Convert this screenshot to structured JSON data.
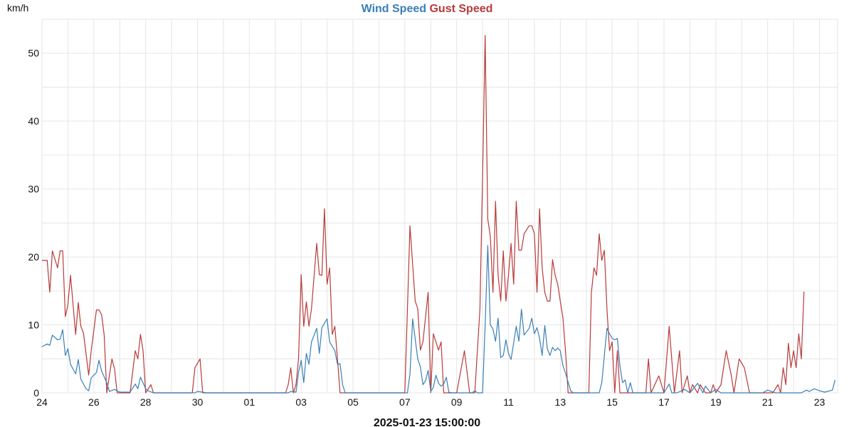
{
  "chart_data": {
    "type": "line",
    "title": "",
    "ylabel": "km/h",
    "xlabel": "2025-01-23 15:00:00",
    "ylim": [
      0,
      55
    ],
    "yticks": [
      0,
      10,
      20,
      30,
      40,
      50
    ],
    "grid": true,
    "legend_position": "top-center",
    "x_tick_labels": [
      "24",
      "26",
      "28",
      "30",
      "01",
      "03",
      "05",
      "07",
      "09",
      "11",
      "13",
      "15",
      "17",
      "19",
      "21",
      "23"
    ],
    "x_tick_positions": [
      0,
      2,
      4,
      6,
      8,
      10,
      12,
      14,
      16,
      18,
      20,
      22,
      24,
      26,
      28,
      30
    ],
    "xlim": [
      0,
      30.7
    ],
    "series": [
      {
        "name": "Wind Speed",
        "color": "#3a7fb8",
        "points": [
          [
            0.0,
            6.8
          ],
          [
            0.2,
            7.2
          ],
          [
            0.3,
            7.0
          ],
          [
            0.4,
            8.5
          ],
          [
            0.6,
            7.8
          ],
          [
            0.7,
            7.9
          ],
          [
            0.8,
            9.3
          ],
          [
            0.9,
            5.5
          ],
          [
            1.0,
            6.5
          ],
          [
            1.1,
            4.2
          ],
          [
            1.3,
            2.8
          ],
          [
            1.4,
            4.9
          ],
          [
            1.5,
            2.0
          ],
          [
            1.7,
            0.6
          ],
          [
            1.8,
            0.3
          ],
          [
            1.9,
            2.2
          ],
          [
            2.1,
            3.0
          ],
          [
            2.2,
            4.8
          ],
          [
            2.3,
            3.2
          ],
          [
            2.5,
            1.5
          ],
          [
            2.6,
            0.2
          ],
          [
            2.8,
            0.5
          ],
          [
            3.0,
            0.1
          ],
          [
            3.4,
            0.1
          ],
          [
            3.6,
            1.3
          ],
          [
            3.7,
            0.6
          ],
          [
            3.8,
            2.3
          ],
          [
            4.0,
            0.6
          ],
          [
            4.1,
            0.3
          ],
          [
            4.3,
            0.0
          ],
          [
            5.9,
            0.0
          ],
          [
            6.0,
            0.2
          ],
          [
            6.2,
            0.1
          ],
          [
            6.3,
            0.0
          ],
          [
            9.5,
            0.0
          ],
          [
            9.6,
            0.2
          ],
          [
            9.8,
            0.1
          ],
          [
            9.9,
            3.0
          ],
          [
            10.0,
            4.8
          ],
          [
            10.1,
            1.5
          ],
          [
            10.2,
            5.8
          ],
          [
            10.3,
            4.2
          ],
          [
            10.4,
            7.5
          ],
          [
            10.6,
            9.5
          ],
          [
            10.7,
            5.8
          ],
          [
            10.8,
            9.6
          ],
          [
            11.0,
            10.9
          ],
          [
            11.1,
            7.5
          ],
          [
            11.3,
            6.2
          ],
          [
            11.4,
            4.2
          ],
          [
            11.5,
            4.3
          ],
          [
            11.6,
            1.2
          ],
          [
            11.7,
            0.0
          ],
          [
            14.1,
            0.0
          ],
          [
            14.2,
            2.8
          ],
          [
            14.3,
            10.9
          ],
          [
            14.5,
            5.0
          ],
          [
            14.6,
            3.8
          ],
          [
            14.7,
            1.2
          ],
          [
            14.8,
            1.8
          ],
          [
            14.9,
            3.3
          ],
          [
            15.0,
            0.2
          ],
          [
            15.1,
            0.8
          ],
          [
            15.2,
            2.6
          ],
          [
            15.3,
            1.4
          ],
          [
            15.4,
            1.0
          ],
          [
            15.5,
            1.3
          ],
          [
            15.6,
            2.3
          ],
          [
            15.7,
            0.1
          ],
          [
            15.8,
            0.0
          ],
          [
            16.6,
            0.0
          ],
          [
            16.7,
            0.3
          ],
          [
            16.8,
            0.0
          ],
          [
            17.0,
            0.0
          ],
          [
            17.1,
            10.0
          ],
          [
            17.2,
            21.7
          ],
          [
            17.3,
            10.0
          ],
          [
            17.4,
            9.4
          ],
          [
            17.5,
            7.6
          ],
          [
            17.6,
            11.0
          ],
          [
            17.7,
            5.2
          ],
          [
            17.8,
            5.5
          ],
          [
            17.9,
            7.8
          ],
          [
            18.0,
            5.8
          ],
          [
            18.1,
            4.9
          ],
          [
            18.3,
            9.8
          ],
          [
            18.4,
            7.6
          ],
          [
            18.5,
            12.3
          ],
          [
            18.6,
            8.5
          ],
          [
            18.8,
            9.5
          ],
          [
            18.9,
            11.0
          ],
          [
            19.0,
            8.7
          ],
          [
            19.1,
            9.6
          ],
          [
            19.2,
            8.0
          ],
          [
            19.3,
            5.5
          ],
          [
            19.4,
            9.9
          ],
          [
            19.5,
            6.5
          ],
          [
            19.6,
            5.5
          ],
          [
            19.7,
            6.7
          ],
          [
            19.8,
            6.2
          ],
          [
            19.9,
            6.6
          ],
          [
            20.0,
            6.2
          ],
          [
            20.1,
            4.0
          ],
          [
            20.2,
            2.9
          ],
          [
            20.4,
            0.3
          ],
          [
            20.5,
            0.0
          ],
          [
            21.5,
            0.0
          ],
          [
            21.6,
            1.5
          ],
          [
            21.7,
            5.5
          ],
          [
            21.8,
            9.5
          ],
          [
            21.9,
            8.7
          ],
          [
            22.0,
            8.0
          ],
          [
            22.1,
            7.8
          ],
          [
            22.2,
            8.0
          ],
          [
            22.3,
            4.0
          ],
          [
            22.4,
            1.5
          ],
          [
            22.5,
            1.9
          ],
          [
            22.6,
            0.0
          ],
          [
            22.7,
            1.5
          ],
          [
            22.8,
            0.0
          ],
          [
            24.0,
            0.0
          ],
          [
            24.2,
            1.3
          ],
          [
            24.3,
            0.0
          ],
          [
            24.5,
            0.0
          ],
          [
            24.8,
            0.5
          ],
          [
            25.0,
            0.0
          ],
          [
            25.3,
            1.4
          ],
          [
            25.5,
            0.0
          ],
          [
            25.6,
            1.0
          ],
          [
            25.8,
            0.0
          ],
          [
            26.0,
            0.5
          ],
          [
            26.2,
            0.0
          ],
          [
            27.8,
            0.0
          ],
          [
            28.0,
            0.4
          ],
          [
            28.3,
            0.0
          ],
          [
            29.3,
            0.0
          ],
          [
            29.5,
            0.4
          ],
          [
            29.6,
            0.2
          ],
          [
            29.8,
            0.6
          ],
          [
            30.0,
            0.3
          ],
          [
            30.2,
            0.1
          ],
          [
            30.5,
            0.4
          ],
          [
            30.6,
            1.9
          ]
        ]
      },
      {
        "name": "Gust Speed",
        "color": "#b83a3a",
        "points": [
          [
            0.0,
            19.5
          ],
          [
            0.2,
            19.5
          ],
          [
            0.3,
            14.8
          ],
          [
            0.4,
            20.9
          ],
          [
            0.6,
            18.4
          ],
          [
            0.7,
            20.9
          ],
          [
            0.8,
            20.9
          ],
          [
            0.9,
            11.2
          ],
          [
            1.0,
            13.0
          ],
          [
            1.1,
            17.3
          ],
          [
            1.3,
            8.6
          ],
          [
            1.4,
            13.3
          ],
          [
            1.5,
            9.8
          ],
          [
            1.6,
            8.8
          ],
          [
            1.8,
            2.6
          ],
          [
            1.9,
            6.2
          ],
          [
            2.1,
            12.2
          ],
          [
            2.2,
            12.2
          ],
          [
            2.3,
            11.5
          ],
          [
            2.4,
            8.5
          ],
          [
            2.5,
            0.0
          ],
          [
            2.7,
            5.0
          ],
          [
            2.8,
            3.5
          ],
          [
            2.9,
            0.0
          ],
          [
            3.4,
            0.0
          ],
          [
            3.6,
            6.2
          ],
          [
            3.7,
            5.0
          ],
          [
            3.8,
            8.6
          ],
          [
            3.9,
            6.2
          ],
          [
            4.0,
            0.0
          ],
          [
            4.2,
            1.2
          ],
          [
            4.3,
            0.0
          ],
          [
            5.8,
            0.0
          ],
          [
            5.9,
            3.7
          ],
          [
            6.1,
            5.0
          ],
          [
            6.2,
            0.0
          ],
          [
            9.4,
            0.0
          ],
          [
            9.5,
            1.2
          ],
          [
            9.6,
            3.7
          ],
          [
            9.7,
            0.0
          ],
          [
            9.8,
            1.2
          ],
          [
            9.9,
            5.0
          ],
          [
            10.0,
            17.4
          ],
          [
            10.1,
            9.8
          ],
          [
            10.2,
            13.4
          ],
          [
            10.3,
            9.8
          ],
          [
            10.4,
            12.4
          ],
          [
            10.6,
            22.0
          ],
          [
            10.7,
            17.4
          ],
          [
            10.8,
            17.3
          ],
          [
            10.9,
            27.1
          ],
          [
            11.0,
            16.0
          ],
          [
            11.1,
            18.4
          ],
          [
            11.2,
            8.6
          ],
          [
            11.3,
            9.8
          ],
          [
            11.4,
            5.0
          ],
          [
            11.5,
            0.0
          ],
          [
            14.0,
            0.0
          ],
          [
            14.1,
            12.3
          ],
          [
            14.2,
            24.6
          ],
          [
            14.4,
            13.5
          ],
          [
            14.5,
            12.4
          ],
          [
            14.6,
            6.3
          ],
          [
            14.7,
            7.5
          ],
          [
            14.9,
            14.8
          ],
          [
            15.0,
            0.0
          ],
          [
            15.1,
            8.7
          ],
          [
            15.3,
            6.3
          ],
          [
            15.4,
            7.5
          ],
          [
            15.5,
            0.0
          ],
          [
            15.6,
            0.0
          ],
          [
            16.0,
            0.0
          ],
          [
            16.3,
            6.2
          ],
          [
            16.5,
            0.0
          ],
          [
            16.7,
            0.0
          ],
          [
            16.9,
            12.4
          ],
          [
            17.0,
            32.0
          ],
          [
            17.1,
            52.6
          ],
          [
            17.2,
            25.6
          ],
          [
            17.3,
            23.0
          ],
          [
            17.4,
            14.8
          ],
          [
            17.5,
            28.2
          ],
          [
            17.6,
            17.3
          ],
          [
            17.7,
            13.5
          ],
          [
            17.8,
            20.9
          ],
          [
            17.9,
            13.5
          ],
          [
            18.0,
            17.3
          ],
          [
            18.1,
            22.0
          ],
          [
            18.2,
            16.0
          ],
          [
            18.3,
            28.2
          ],
          [
            18.4,
            21.0
          ],
          [
            18.5,
            21.0
          ],
          [
            18.6,
            23.4
          ],
          [
            18.8,
            24.6
          ],
          [
            18.9,
            24.6
          ],
          [
            19.0,
            23.4
          ],
          [
            19.1,
            14.8
          ],
          [
            19.2,
            27.1
          ],
          [
            19.3,
            18.4
          ],
          [
            19.4,
            14.8
          ],
          [
            19.5,
            13.5
          ],
          [
            19.6,
            13.5
          ],
          [
            19.7,
            19.6
          ],
          [
            19.8,
            17.3
          ],
          [
            19.9,
            16.0
          ],
          [
            20.0,
            13.5
          ],
          [
            20.1,
            11.0
          ],
          [
            20.2,
            6.2
          ],
          [
            20.3,
            0.0
          ],
          [
            21.1,
            0.0
          ],
          [
            21.2,
            14.8
          ],
          [
            21.3,
            18.4
          ],
          [
            21.4,
            17.3
          ],
          [
            21.5,
            23.4
          ],
          [
            21.6,
            19.5
          ],
          [
            21.7,
            21.0
          ],
          [
            21.8,
            12.3
          ],
          [
            21.9,
            6.2
          ],
          [
            22.0,
            7.5
          ],
          [
            22.1,
            0.0
          ],
          [
            22.2,
            6.2
          ],
          [
            22.3,
            0.0
          ],
          [
            23.3,
            0.0
          ],
          [
            23.4,
            5.0
          ],
          [
            23.5,
            0.0
          ],
          [
            23.8,
            2.5
          ],
          [
            24.0,
            0.0
          ],
          [
            24.2,
            9.8
          ],
          [
            24.4,
            0.0
          ],
          [
            24.6,
            6.2
          ],
          [
            24.7,
            0.0
          ],
          [
            24.9,
            2.5
          ],
          [
            25.0,
            0.0
          ],
          [
            25.1,
            1.2
          ],
          [
            25.3,
            0.0
          ],
          [
            25.4,
            1.2
          ],
          [
            25.6,
            0.0
          ],
          [
            25.8,
            0.0
          ],
          [
            25.9,
            1.2
          ],
          [
            26.0,
            0.0
          ],
          [
            26.2,
            1.2
          ],
          [
            26.4,
            6.2
          ],
          [
            26.6,
            2.5
          ],
          [
            26.7,
            0.0
          ],
          [
            26.9,
            5.0
          ],
          [
            27.1,
            3.7
          ],
          [
            27.3,
            0.0
          ],
          [
            28.2,
            0.0
          ],
          [
            28.4,
            1.2
          ],
          [
            28.5,
            0.0
          ],
          [
            28.6,
            3.7
          ],
          [
            28.7,
            1.2
          ],
          [
            28.8,
            7.3
          ],
          [
            28.9,
            3.7
          ],
          [
            29.0,
            6.2
          ],
          [
            29.1,
            3.7
          ],
          [
            29.2,
            8.7
          ],
          [
            29.3,
            5.0
          ],
          [
            29.4,
            14.9
          ]
        ]
      }
    ]
  }
}
